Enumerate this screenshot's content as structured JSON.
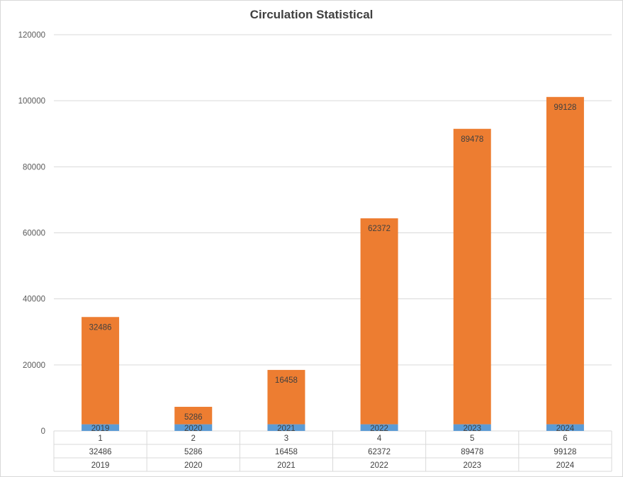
{
  "chart_data": {
    "type": "bar",
    "title": "Circulation Statistical",
    "categories": [
      "1",
      "2",
      "3",
      "4",
      "5",
      "6"
    ],
    "stacked": true,
    "series": [
      {
        "values": [
          2019,
          2020,
          2021,
          2022,
          2023,
          2024
        ],
        "color": "#5B9BD5"
      },
      {
        "values": [
          32486,
          5286,
          16458,
          62372,
          89478,
          99128
        ],
        "color": "#ED7D31"
      }
    ],
    "ylim": [
      0,
      120000
    ],
    "yticks": [
      0,
      20000,
      40000,
      60000,
      80000,
      100000,
      120000
    ],
    "grid": true,
    "data_table": true,
    "xlabel": "",
    "ylabel": ""
  }
}
